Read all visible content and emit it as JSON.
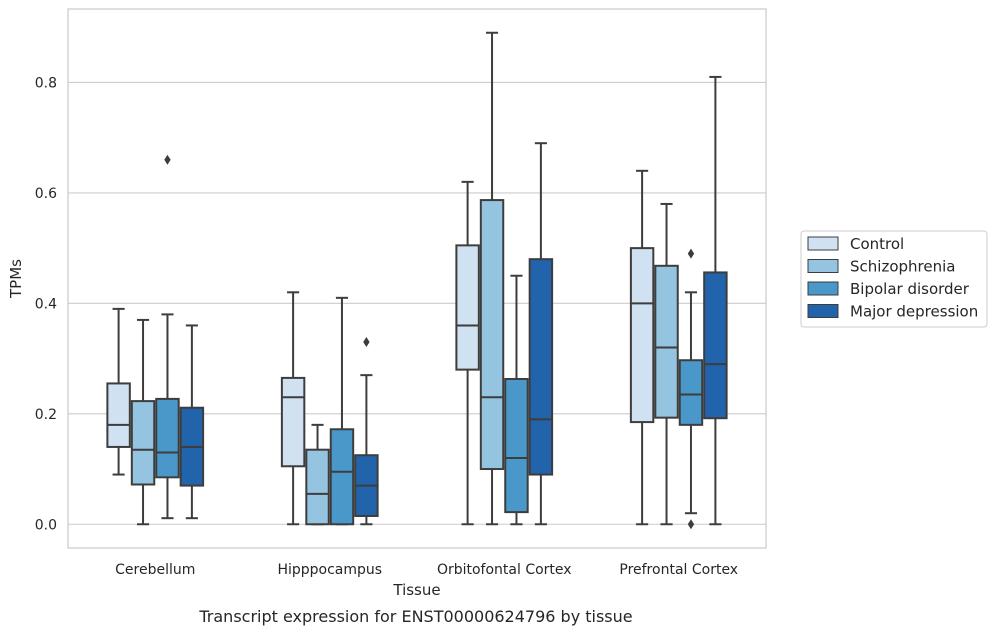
{
  "chart_data": {
    "type": "box",
    "xlabel": "Tissue",
    "ylabel": "TPMs",
    "caption": "Transcript expression for ENST00000624796 by tissue",
    "categories": [
      "Cerebellum",
      "Hipppocampus",
      "Orbitofontal Cortex",
      "Prefrontal Cortex"
    ],
    "ylim": [
      -0.043,
      0.933
    ],
    "yticks": [
      0.0,
      0.2,
      0.4,
      0.6,
      0.8
    ],
    "ytick_labels": [
      "0.0",
      "0.2",
      "0.4",
      "0.6",
      "0.8"
    ],
    "grid": "horizontal",
    "legend_position": "right",
    "series": [
      {
        "name": "Control",
        "color": "#d0e1f2",
        "boxes": [
          {
            "whislo": 0.09,
            "q1": 0.14,
            "med": 0.18,
            "q3": 0.255,
            "whishi": 0.39,
            "fliers": []
          },
          {
            "whislo": 0.0,
            "q1": 0.105,
            "med": 0.23,
            "q3": 0.265,
            "whishi": 0.42,
            "fliers": []
          },
          {
            "whislo": 0.0,
            "q1": 0.28,
            "med": 0.36,
            "q3": 0.505,
            "whishi": 0.62,
            "fliers": []
          },
          {
            "whislo": 0.0,
            "q1": 0.185,
            "med": 0.4,
            "q3": 0.5,
            "whishi": 0.64,
            "fliers": []
          }
        ]
      },
      {
        "name": "Schizophrenia",
        "color": "#94c4df",
        "boxes": [
          {
            "whislo": 0.0,
            "q1": 0.072,
            "med": 0.135,
            "q3": 0.223,
            "whishi": 0.37,
            "fliers": []
          },
          {
            "whislo": 0.0,
            "q1": 0.0,
            "med": 0.055,
            "q3": 0.135,
            "whishi": 0.18,
            "fliers": []
          },
          {
            "whislo": 0.0,
            "q1": 0.1,
            "med": 0.23,
            "q3": 0.587,
            "whishi": 0.89,
            "fliers": []
          },
          {
            "whislo": 0.0,
            "q1": 0.193,
            "med": 0.32,
            "q3": 0.468,
            "whishi": 0.58,
            "fliers": []
          }
        ]
      },
      {
        "name": "Bipolar disorder",
        "color": "#4a98c9",
        "boxes": [
          {
            "whislo": 0.011,
            "q1": 0.085,
            "med": 0.13,
            "q3": 0.227,
            "whishi": 0.38,
            "fliers": [
              0.66
            ]
          },
          {
            "whislo": 0.0,
            "q1": 0.0,
            "med": 0.095,
            "q3": 0.172,
            "whishi": 0.41,
            "fliers": []
          },
          {
            "whislo": 0.0,
            "q1": 0.022,
            "med": 0.12,
            "q3": 0.263,
            "whishi": 0.45,
            "fliers": []
          },
          {
            "whislo": 0.02,
            "q1": 0.18,
            "med": 0.235,
            "q3": 0.297,
            "whishi": 0.42,
            "fliers": [
              0.49,
              0.0
            ]
          }
        ]
      },
      {
        "name": "Major depression",
        "color": "#2164ab",
        "boxes": [
          {
            "whislo": 0.011,
            "q1": 0.07,
            "med": 0.14,
            "q3": 0.211,
            "whishi": 0.36,
            "fliers": []
          },
          {
            "whislo": 0.0,
            "q1": 0.015,
            "med": 0.07,
            "q3": 0.125,
            "whishi": 0.27,
            "fliers": [
              0.33
            ]
          },
          {
            "whislo": 0.0,
            "q1": 0.09,
            "med": 0.19,
            "q3": 0.48,
            "whishi": 0.69,
            "fliers": []
          },
          {
            "whislo": 0.0,
            "q1": 0.192,
            "med": 0.29,
            "q3": 0.456,
            "whishi": 0.81,
            "fliers": []
          }
        ]
      }
    ]
  }
}
